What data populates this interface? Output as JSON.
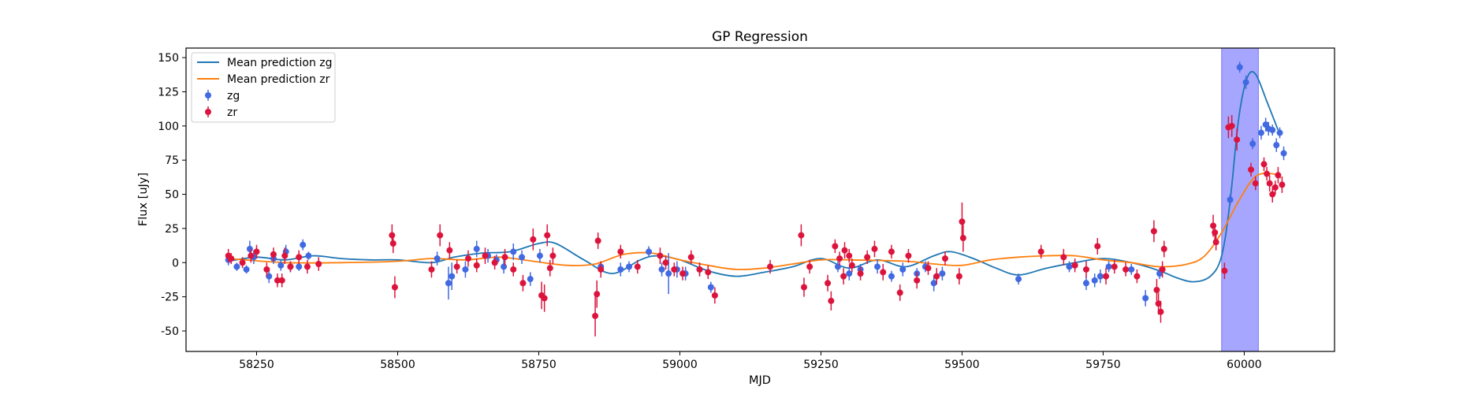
{
  "chart_data": {
    "type": "scatter",
    "title": "GP Regression",
    "xlabel": "MJD",
    "ylabel": "Flux [uJy]",
    "xlim": [
      58125,
      60160
    ],
    "ylim": [
      -65,
      157
    ],
    "xticks": [
      58250,
      58500,
      58750,
      59000,
      59250,
      59500,
      59750,
      60000
    ],
    "yticks": [
      -50,
      -25,
      0,
      25,
      50,
      75,
      100,
      125,
      150
    ],
    "grid": false,
    "legend_position": "top-left",
    "highlight_region": {
      "x0": 59960,
      "x1": 60025,
      "color": "#a6a6ff"
    },
    "colors": {
      "zg_line": "#1f77b4",
      "zr_line": "#ff7f0e",
      "zg_points": "#4169e1",
      "zr_points": "#dc143c"
    },
    "legend": [
      {
        "label": "Mean prediction zg",
        "kind": "line",
        "color": "#1f77b4"
      },
      {
        "label": "Mean prediction zr",
        "kind": "line",
        "color": "#ff7f0e"
      },
      {
        "label": "zg",
        "kind": "errorbar",
        "color": "#4169e1"
      },
      {
        "label": "zr",
        "kind": "errorbar",
        "color": "#dc143c"
      }
    ],
    "lines": [
      {
        "name": "Mean prediction zg",
        "color": "#1f77b4",
        "x": [
          58200,
          58250,
          58300,
          58350,
          58400,
          58450,
          58500,
          58560,
          58600,
          58650,
          58700,
          58750,
          58780,
          58830,
          58880,
          58930,
          58960,
          59000,
          59050,
          59100,
          59150,
          59200,
          59250,
          59300,
          59350,
          59400,
          59450,
          59480,
          59520,
          59560,
          59600,
          59650,
          59700,
          59750,
          59800,
          59850,
          59880,
          59910,
          59940,
          59960,
          59975,
          59990,
          60005,
          60020,
          60040,
          60060
        ],
        "y": [
          1,
          4,
          2,
          5,
          3,
          2,
          2,
          0,
          4,
          7,
          8,
          14,
          14,
          2,
          -8,
          2,
          5,
          2,
          -6,
          -10,
          -7,
          -3,
          3,
          -4,
          2,
          -3,
          5,
          8,
          3,
          -4,
          -9,
          -4,
          0,
          3,
          0,
          -6,
          -11,
          -14,
          -10,
          5,
          45,
          105,
          135,
          138,
          118,
          97
        ]
      },
      {
        "name": "Mean prediction zr",
        "color": "#ff7f0e",
        "x": [
          58200,
          58300,
          58400,
          58500,
          58560,
          58620,
          58680,
          58740,
          58800,
          58850,
          58900,
          58950,
          59000,
          59050,
          59100,
          59150,
          59200,
          59250,
          59300,
          59400,
          59450,
          59500,
          59550,
          59600,
          59650,
          59700,
          59750,
          59800,
          59850,
          59900,
          59930,
          59960,
          59990,
          60020,
          60050,
          60065
        ],
        "y": [
          3,
          0,
          0,
          1,
          3,
          2,
          4,
          1,
          -2,
          -1,
          6,
          7,
          2,
          -2,
          -5,
          -4,
          -1,
          2,
          2,
          1,
          -1,
          -2,
          2,
          4,
          5,
          5,
          2,
          0,
          -3,
          -1,
          5,
          22,
          45,
          63,
          65,
          62
        ]
      }
    ],
    "series": [
      {
        "name": "zg",
        "color": "#4169e1",
        "x": [
          58200,
          58215,
          58232,
          58238,
          58245,
          58272,
          58280,
          58293,
          58302,
          58310,
          58325,
          58332,
          58342,
          58570,
          58590,
          58596,
          58620,
          58640,
          58660,
          58675,
          58688,
          58705,
          58720,
          58735,
          58752,
          58860,
          58895,
          58910,
          58945,
          58968,
          58980,
          58995,
          59010,
          59035,
          59055,
          59280,
          59300,
          59320,
          59350,
          59375,
          59395,
          59420,
          59435,
          59450,
          59465,
          59600,
          59690,
          59720,
          59735,
          59745,
          59760,
          59800,
          59825,
          59850,
          59975,
          59992,
          60003,
          60015,
          60030,
          60038,
          60043,
          60050,
          60057,
          60063,
          60070
        ],
        "y": [
          2,
          -3,
          -5,
          10,
          4,
          -10,
          3,
          -2,
          8,
          -3,
          -3,
          13,
          5,
          3,
          -15,
          -10,
          -5,
          10,
          5,
          2,
          -3,
          8,
          4,
          -12,
          5,
          -3,
          -5,
          -3,
          8,
          -5,
          -8,
          -5,
          -8,
          -5,
          -18,
          -3,
          -8,
          -5,
          -3,
          -10,
          -5,
          -8,
          -3,
          -15,
          -8,
          -12,
          -3,
          -15,
          -13,
          -10,
          -3,
          -5,
          -26,
          -8,
          46,
          143,
          132,
          87,
          95,
          101,
          98,
          97,
          86,
          95,
          80
        ],
        "err": [
          4,
          3,
          3,
          6,
          5,
          5,
          4,
          4,
          5,
          4,
          3,
          4,
          3,
          5,
          12,
          10,
          6,
          6,
          5,
          4,
          5,
          6,
          5,
          5,
          5,
          4,
          5,
          4,
          4,
          5,
          15,
          6,
          5,
          5,
          4,
          4,
          5,
          4,
          5,
          4,
          5,
          4,
          4,
          6,
          5,
          4,
          4,
          5,
          5,
          5,
          4,
          4,
          6,
          4,
          4,
          4,
          5,
          4,
          5,
          5,
          5,
          4,
          5,
          4,
          5
        ]
      },
      {
        "name": "zr",
        "color": "#dc143c",
        "x": [
          58200,
          58205,
          58225,
          58240,
          58250,
          58268,
          58280,
          58287,
          58295,
          58300,
          58310,
          58325,
          58340,
          58360,
          58490,
          58492,
          58495,
          58560,
          58575,
          58592,
          58605,
          58625,
          58640,
          58655,
          58672,
          58690,
          58705,
          58722,
          58740,
          58755,
          58760,
          58765,
          58770,
          58775,
          58850,
          58853,
          58855,
          58860,
          58895,
          58925,
          58965,
          58975,
          58990,
          59005,
          59020,
          59035,
          59050,
          59062,
          59160,
          59215,
          59220,
          59230,
          59262,
          59268,
          59275,
          59283,
          59290,
          59292,
          59300,
          59305,
          59320,
          59332,
          59345,
          59360,
          59375,
          59390,
          59405,
          59420,
          59440,
          59455,
          59470,
          59495,
          59500,
          59502,
          59640,
          59680,
          59700,
          59720,
          59740,
          59755,
          59770,
          59790,
          59810,
          59840,
          59845,
          59848,
          59852,
          59855,
          59858,
          59945,
          59948,
          59950,
          59965,
          59972,
          59978,
          59987,
          60012,
          60020,
          60035,
          60040,
          60045,
          60050,
          60055,
          60060,
          60067
        ],
        "y": [
          5,
          3,
          0,
          5,
          8,
          -5,
          6,
          -13,
          -13,
          5,
          -3,
          4,
          -3,
          -1,
          20,
          14,
          -18,
          -5,
          20,
          9,
          -3,
          3,
          -2,
          5,
          0,
          4,
          -5,
          -15,
          17,
          -24,
          -26,
          20,
          -4,
          5,
          -39,
          -23,
          16,
          -5,
          8,
          -3,
          5,
          0,
          -5,
          -8,
          4,
          -5,
          -7,
          -24,
          -3,
          20,
          -18,
          -3,
          -15,
          -28,
          12,
          3,
          -10,
          9,
          5,
          -2,
          -8,
          4,
          10,
          -7,
          8,
          -22,
          5,
          -13,
          -4,
          -10,
          3,
          -10,
          30,
          18,
          8,
          4,
          -2,
          -5,
          12,
          -10,
          -3,
          -5,
          -10,
          23,
          -20,
          -30,
          -36,
          -5,
          10,
          27,
          22,
          15,
          -6,
          99,
          100,
          90,
          68,
          58,
          72,
          65,
          58,
          50,
          55,
          64,
          57
        ],
        "err": [
          5,
          4,
          4,
          5,
          5,
          5,
          5,
          5,
          5,
          6,
          4,
          5,
          5,
          5,
          8,
          7,
          8,
          6,
          8,
          6,
          5,
          6,
          5,
          6,
          5,
          6,
          5,
          6,
          8,
          10,
          10,
          8,
          6,
          6,
          15,
          10,
          6,
          6,
          5,
          5,
          6,
          5,
          5,
          5,
          5,
          5,
          5,
          6,
          5,
          8,
          7,
          5,
          6,
          7,
          5,
          5,
          6,
          6,
          5,
          5,
          5,
          5,
          6,
          6,
          5,
          6,
          5,
          6,
          5,
          6,
          5,
          6,
          14,
          10,
          5,
          6,
          5,
          6,
          6,
          6,
          5,
          5,
          5,
          8,
          8,
          8,
          8,
          6,
          6,
          8,
          6,
          6,
          6,
          8,
          8,
          8,
          5,
          5,
          5,
          5,
          6,
          6,
          5,
          6,
          6
        ]
      }
    ]
  }
}
